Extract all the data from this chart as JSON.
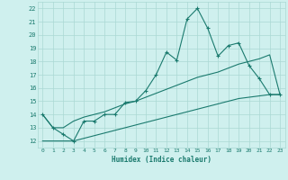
{
  "xlabel": "Humidex (Indice chaleur)",
  "background_color": "#cff0ee",
  "grid_color": "#aad8d4",
  "line_color": "#1a7a6e",
  "xlim": [
    -0.5,
    23.5
  ],
  "ylim": [
    11.5,
    22.5
  ],
  "xticks": [
    0,
    1,
    2,
    3,
    4,
    5,
    6,
    7,
    8,
    9,
    10,
    11,
    12,
    13,
    14,
    15,
    16,
    17,
    18,
    19,
    20,
    21,
    22,
    23
  ],
  "yticks": [
    12,
    13,
    14,
    15,
    16,
    17,
    18,
    19,
    20,
    21,
    22
  ],
  "main_series_x": [
    0,
    1,
    2,
    3,
    4,
    5,
    6,
    7,
    8,
    9,
    10,
    11,
    12,
    13,
    14,
    15,
    16,
    17,
    18,
    19,
    20,
    21,
    22,
    23
  ],
  "main_series_y": [
    14.0,
    13.0,
    12.5,
    12.0,
    13.5,
    13.5,
    14.0,
    14.0,
    14.9,
    15.0,
    15.8,
    17.0,
    18.7,
    18.1,
    21.2,
    22.0,
    20.5,
    18.4,
    19.2,
    19.4,
    17.7,
    16.7,
    15.5,
    15.5
  ],
  "upper_series_x": [
    0,
    1,
    2,
    3,
    4,
    5,
    6,
    7,
    8,
    9,
    10,
    11,
    12,
    13,
    14,
    15,
    16,
    17,
    18,
    19,
    20,
    21,
    22,
    23
  ],
  "upper_series_y": [
    14.0,
    13.0,
    13.0,
    13.5,
    13.8,
    14.0,
    14.2,
    14.5,
    14.8,
    15.0,
    15.3,
    15.6,
    15.9,
    16.2,
    16.5,
    16.8,
    17.0,
    17.2,
    17.5,
    17.8,
    18.0,
    18.2,
    18.5,
    15.5
  ],
  "lower_series_x": [
    0,
    1,
    2,
    3,
    4,
    5,
    6,
    7,
    8,
    9,
    10,
    11,
    12,
    13,
    14,
    15,
    16,
    17,
    18,
    19,
    20,
    21,
    22,
    23
  ],
  "lower_series_y": [
    12.0,
    12.0,
    12.0,
    12.0,
    12.2,
    12.4,
    12.6,
    12.8,
    13.0,
    13.2,
    13.4,
    13.6,
    13.8,
    14.0,
    14.2,
    14.4,
    14.6,
    14.8,
    15.0,
    15.2,
    15.3,
    15.4,
    15.5,
    15.5
  ],
  "main_marker_x": [
    0,
    1,
    2,
    3,
    4,
    5,
    6,
    7,
    8,
    9,
    10,
    11,
    12,
    13,
    14,
    15,
    16,
    17,
    18,
    19,
    20,
    21,
    22,
    23
  ],
  "main_marker_y": [
    14.0,
    13.0,
    12.5,
    12.0,
    13.5,
    13.5,
    14.0,
    14.0,
    14.9,
    15.0,
    15.8,
    17.0,
    18.7,
    18.1,
    21.2,
    22.0,
    20.5,
    18.4,
    19.2,
    19.4,
    17.7,
    16.7,
    15.5,
    15.5
  ]
}
